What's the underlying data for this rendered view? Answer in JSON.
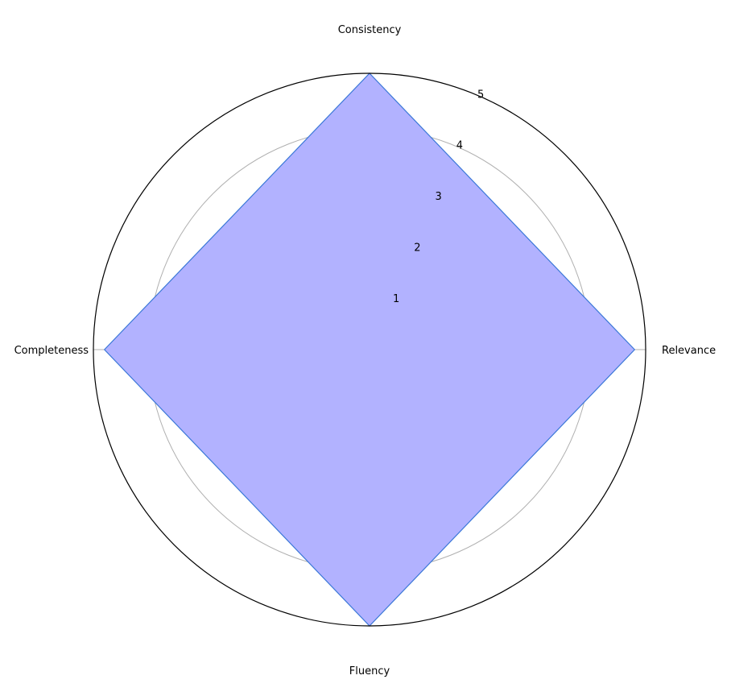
{
  "chart_data": {
    "type": "radar",
    "categories": [
      "Relevance",
      "Consistency",
      "Completeness",
      "Fluency"
    ],
    "series": [
      {
        "values": [
          4.8,
          5.0,
          4.8,
          5.0
        ]
      }
    ],
    "rlim": [
      0,
      5
    ],
    "rticks": [
      1,
      2,
      3,
      4,
      5
    ],
    "rtick_labels": [
      "1",
      "2",
      "3",
      "4",
      "5"
    ],
    "grid": true,
    "colors": {
      "fill": "#b2b2ff",
      "line": "#3b78d8",
      "grid": "#b0b0b0",
      "frame": "#000000"
    }
  }
}
